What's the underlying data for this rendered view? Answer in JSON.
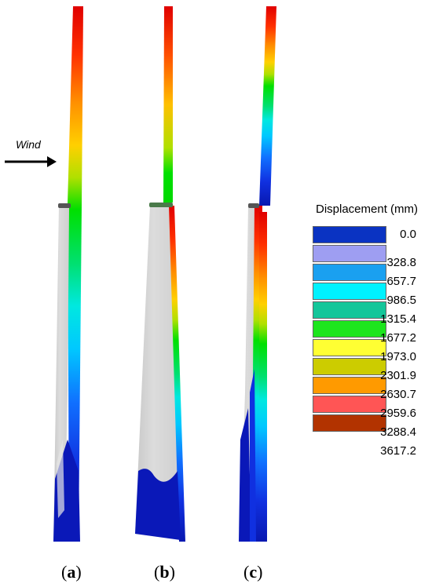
{
  "wind_label": "Wind",
  "legend": {
    "title": "Displacement (mm)",
    "values": [
      "0.0",
      "328.8",
      "657.7",
      "986.5",
      "1315.4",
      "1677.2",
      "1973.0",
      "2301.9",
      "2630.7",
      "2959.6",
      "3288.4",
      "3617.2"
    ],
    "colors": [
      "#0a33c2",
      "#9e9ef2",
      "#1aa0f0",
      "#00f2ff",
      "#14c69a",
      "#1de51d",
      "#ffff33",
      "#cccc00",
      "#ff9a00",
      "#ff5555",
      "#b23300"
    ]
  },
  "panels": [
    {
      "letter": "a"
    },
    {
      "letter": "b"
    },
    {
      "letter": "c"
    }
  ],
  "colors": {
    "gradient_stops": [
      "#e00000",
      "#ff7a00",
      "#ffd000",
      "#a6e000",
      "#00e000",
      "#00e0a0",
      "#00e8ff",
      "#1090ff",
      "#1020e0",
      "#0818b0"
    ],
    "blade_grey": "#d6d6d6",
    "blade_edge": "#eeeeee",
    "blue_root": "#0a18b8"
  }
}
